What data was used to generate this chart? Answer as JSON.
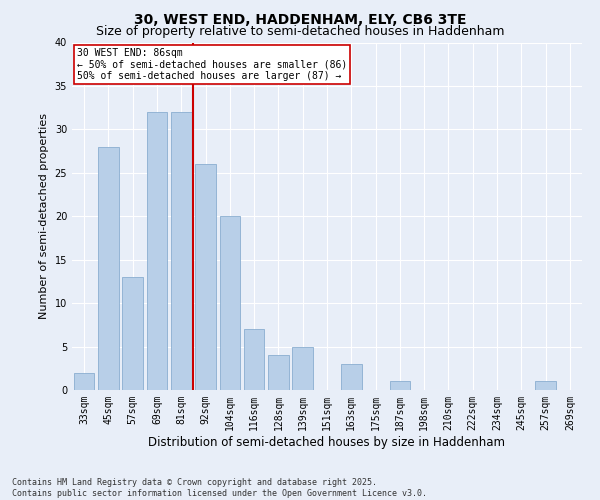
{
  "title1": "30, WEST END, HADDENHAM, ELY, CB6 3TE",
  "title2": "Size of property relative to semi-detached houses in Haddenham",
  "xlabel": "Distribution of semi-detached houses by size in Haddenham",
  "ylabel": "Number of semi-detached properties",
  "categories": [
    "33sqm",
    "45sqm",
    "57sqm",
    "69sqm",
    "81sqm",
    "92sqm",
    "104sqm",
    "116sqm",
    "128sqm",
    "139sqm",
    "151sqm",
    "163sqm",
    "175sqm",
    "187sqm",
    "198sqm",
    "210sqm",
    "222sqm",
    "234sqm",
    "245sqm",
    "257sqm",
    "269sqm"
  ],
  "values": [
    2,
    28,
    13,
    32,
    32,
    26,
    20,
    7,
    4,
    5,
    0,
    3,
    0,
    1,
    0,
    0,
    0,
    0,
    0,
    1,
    0
  ],
  "bar_color": "#b8cfe8",
  "bar_edge_color": "#8aaed0",
  "median_line_color": "#cc0000",
  "annotation_text": "30 WEST END: 86sqm\n← 50% of semi-detached houses are smaller (86)\n50% of semi-detached houses are larger (87) →",
  "annotation_box_color": "#ffffff",
  "annotation_box_edge": "#cc0000",
  "background_color": "#e8eef8",
  "grid_color": "#ffffff",
  "ylim": [
    0,
    40
  ],
  "yticks": [
    0,
    5,
    10,
    15,
    20,
    25,
    30,
    35,
    40
  ],
  "footer": "Contains HM Land Registry data © Crown copyright and database right 2025.\nContains public sector information licensed under the Open Government Licence v3.0.",
  "title1_fontsize": 10,
  "title2_fontsize": 9,
  "xlabel_fontsize": 8.5,
  "ylabel_fontsize": 8,
  "tick_fontsize": 7,
  "footer_fontsize": 6,
  "annotation_fontsize": 7
}
